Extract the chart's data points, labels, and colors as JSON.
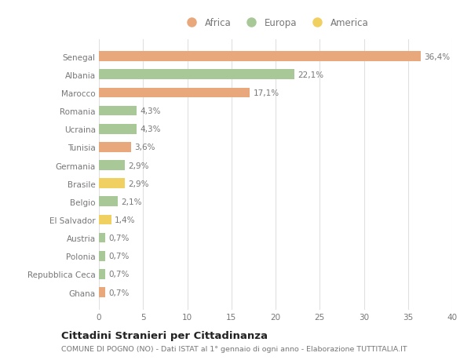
{
  "categories": [
    "Ghana",
    "Repubblica Ceca",
    "Polonia",
    "Austria",
    "El Salvador",
    "Belgio",
    "Brasile",
    "Germania",
    "Tunisia",
    "Ucraina",
    "Romania",
    "Marocco",
    "Albania",
    "Senegal"
  ],
  "values": [
    0.7,
    0.7,
    0.7,
    0.7,
    1.4,
    2.1,
    2.9,
    2.9,
    3.6,
    4.3,
    4.3,
    17.1,
    22.1,
    36.4
  ],
  "labels": [
    "0,7%",
    "0,7%",
    "0,7%",
    "0,7%",
    "1,4%",
    "2,1%",
    "2,9%",
    "2,9%",
    "3,6%",
    "4,3%",
    "4,3%",
    "17,1%",
    "22,1%",
    "36,4%"
  ],
  "continents": [
    "Africa",
    "Europa",
    "Europa",
    "Europa",
    "America",
    "Europa",
    "America",
    "Europa",
    "Africa",
    "Europa",
    "Europa",
    "Africa",
    "Europa",
    "Africa"
  ],
  "colors": {
    "Africa": "#E8A87C",
    "Europa": "#A8C897",
    "America": "#F0D060"
  },
  "xlim": [
    0,
    40
  ],
  "xticks": [
    0,
    5,
    10,
    15,
    20,
    25,
    30,
    35,
    40
  ],
  "title1": "Cittadini Stranieri per Cittadinanza",
  "title2": "COMUNE DI POGNO (NO) - Dati ISTAT al 1° gennaio di ogni anno - Elaborazione TUTTITALIA.IT",
  "background_color": "#ffffff",
  "grid_color": "#e0e0e0",
  "bar_height": 0.55,
  "text_color": "#777777",
  "label_color": "#777777",
  "title1_color": "#222222",
  "title2_color": "#777777"
}
